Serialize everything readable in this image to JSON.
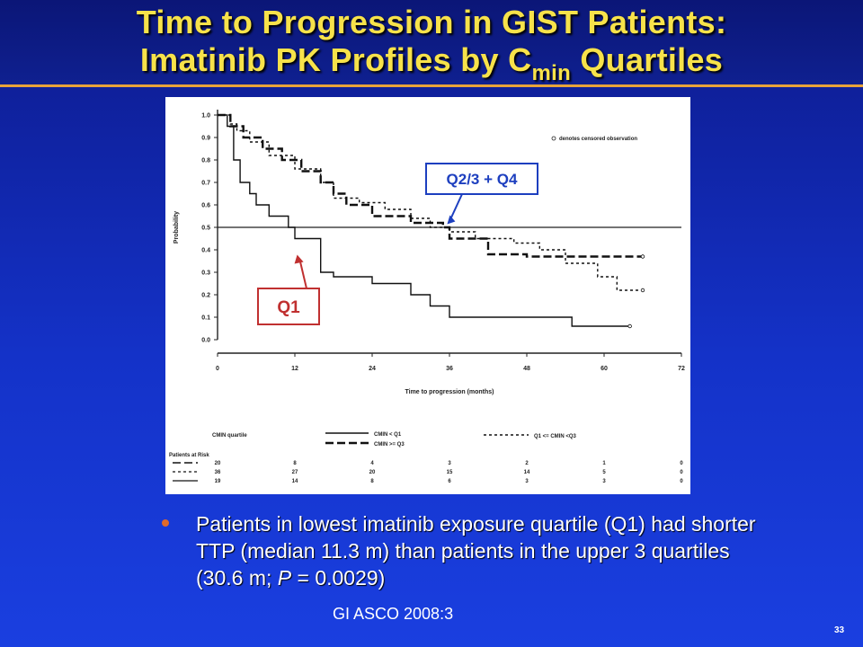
{
  "slide": {
    "title_line1": "Time to Progression in GIST Patients:",
    "title_line2_pre": "Imatinib PK Profiles by C",
    "title_line2_sub": "min",
    "title_line2_post": " Quartiles",
    "bullet": "Patients in lowest imatinib exposure quartile (Q1) had shorter TTP (median 11.3 m) than patients in the upper 3 quartiles (30.6 m; ",
    "bullet_p": "P",
    "bullet_end": " = 0.0029)",
    "citation": "GI ASCO 2008:3",
    "page_number": "33"
  },
  "chart_data": {
    "type": "line",
    "xlabel": "Time to progression (months)",
    "ylabel": "Probability",
    "xlim": [
      0,
      72
    ],
    "ylim": [
      0,
      1.0
    ],
    "x_ticks": [
      "0",
      "12",
      "24",
      "36",
      "48",
      "60",
      "72"
    ],
    "y_ticks": [
      "0.0",
      "0.1",
      "0.2",
      "0.3",
      "0.4",
      "0.5",
      "0.6",
      "0.7",
      "0.8",
      "0.9",
      "1.0"
    ],
    "reference_line": 0.5,
    "censor_note": "denotes censored observation",
    "callouts": {
      "q1": "Q1",
      "q234": "Q2/3 + Q4"
    },
    "legend": {
      "title": "CMIN quartile",
      "entries": [
        "CMIN < Q1",
        "CMIN >= Q3",
        "Q1 <= CMIN <Q3"
      ]
    },
    "risk_table": {
      "title": "Patients at Risk",
      "rows": [
        [
          "20",
          "8",
          "4",
          "3",
          "2",
          "1",
          "0"
        ],
        [
          "36",
          "27",
          "20",
          "15",
          "14",
          "5",
          "0"
        ],
        [
          "19",
          "14",
          "8",
          "6",
          "3",
          "3",
          "0"
        ]
      ]
    },
    "series": [
      {
        "name": "CMIN < Q1",
        "style": "solid",
        "points": [
          [
            0,
            1.0
          ],
          [
            1.5,
            1.0
          ],
          [
            1.5,
            0.95
          ],
          [
            2.5,
            0.95
          ],
          [
            2.5,
            0.8
          ],
          [
            3.5,
            0.8
          ],
          [
            3.5,
            0.7
          ],
          [
            5,
            0.7
          ],
          [
            5,
            0.65
          ],
          [
            6,
            0.65
          ],
          [
            6,
            0.6
          ],
          [
            8,
            0.6
          ],
          [
            8,
            0.55
          ],
          [
            11,
            0.55
          ],
          [
            11,
            0.5
          ],
          [
            12,
            0.5
          ],
          [
            12,
            0.45
          ],
          [
            16,
            0.45
          ],
          [
            16,
            0.3
          ],
          [
            18,
            0.3
          ],
          [
            18,
            0.28
          ],
          [
            24,
            0.28
          ],
          [
            24,
            0.25
          ],
          [
            30,
            0.25
          ],
          [
            30,
            0.2
          ],
          [
            33,
            0.2
          ],
          [
            33,
            0.15
          ],
          [
            36,
            0.15
          ],
          [
            36,
            0.1
          ],
          [
            55,
            0.1
          ],
          [
            55,
            0.06
          ],
          [
            64,
            0.06
          ]
        ]
      },
      {
        "name": "CMIN >= Q3",
        "style": "long-dash",
        "points": [
          [
            0,
            1.0
          ],
          [
            2,
            1.0
          ],
          [
            2,
            0.95
          ],
          [
            4,
            0.95
          ],
          [
            4,
            0.9
          ],
          [
            7,
            0.9
          ],
          [
            7,
            0.85
          ],
          [
            10,
            0.85
          ],
          [
            10,
            0.8
          ],
          [
            13,
            0.8
          ],
          [
            13,
            0.75
          ],
          [
            16,
            0.75
          ],
          [
            16,
            0.7
          ],
          [
            18,
            0.7
          ],
          [
            18,
            0.65
          ],
          [
            20,
            0.65
          ],
          [
            20,
            0.6
          ],
          [
            24,
            0.6
          ],
          [
            24,
            0.55
          ],
          [
            30,
            0.55
          ],
          [
            30,
            0.52
          ],
          [
            35,
            0.52
          ],
          [
            35,
            0.5
          ],
          [
            36,
            0.5
          ],
          [
            36,
            0.45
          ],
          [
            42,
            0.45
          ],
          [
            42,
            0.38
          ],
          [
            48,
            0.38
          ],
          [
            48,
            0.37
          ],
          [
            66,
            0.37
          ]
        ]
      },
      {
        "name": "Q1 <= CMIN <Q3",
        "style": "short-dash",
        "points": [
          [
            0,
            1.0
          ],
          [
            2,
            1.0
          ],
          [
            2,
            0.96
          ],
          [
            3,
            0.96
          ],
          [
            3,
            0.93
          ],
          [
            5,
            0.93
          ],
          [
            5,
            0.88
          ],
          [
            8,
            0.88
          ],
          [
            8,
            0.82
          ],
          [
            12,
            0.82
          ],
          [
            12,
            0.76
          ],
          [
            16,
            0.76
          ],
          [
            16,
            0.7
          ],
          [
            18,
            0.7
          ],
          [
            18,
            0.63
          ],
          [
            22,
            0.63
          ],
          [
            22,
            0.61
          ],
          [
            26,
            0.61
          ],
          [
            26,
            0.58
          ],
          [
            30,
            0.58
          ],
          [
            30,
            0.54
          ],
          [
            33,
            0.54
          ],
          [
            33,
            0.5
          ],
          [
            36,
            0.5
          ],
          [
            36,
            0.48
          ],
          [
            40,
            0.48
          ],
          [
            40,
            0.45
          ],
          [
            46,
            0.45
          ],
          [
            46,
            0.43
          ],
          [
            50,
            0.43
          ],
          [
            50,
            0.4
          ],
          [
            54,
            0.4
          ],
          [
            54,
            0.34
          ],
          [
            59,
            0.34
          ],
          [
            59,
            0.28
          ],
          [
            62,
            0.28
          ],
          [
            62,
            0.22
          ],
          [
            66,
            0.22
          ]
        ]
      }
    ]
  }
}
